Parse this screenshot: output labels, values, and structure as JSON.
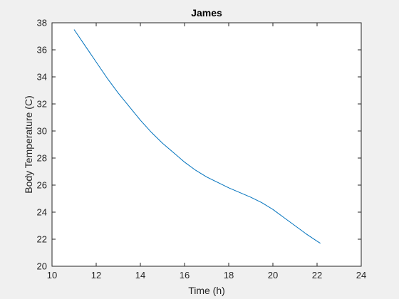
{
  "chart_data": {
    "type": "line",
    "title": "James",
    "xlabel": "Time (h)",
    "ylabel": "Body Temperature (C)",
    "xlim": [
      10,
      24
    ],
    "ylim": [
      20,
      38
    ],
    "xticks": [
      "10",
      "12",
      "14",
      "16",
      "18",
      "20",
      "22",
      "24"
    ],
    "yticks": [
      "20",
      "22",
      "24",
      "26",
      "28",
      "30",
      "32",
      "34",
      "36",
      "38"
    ],
    "grid": false,
    "box": true,
    "series": [
      {
        "color": "#0072bd",
        "x": [
          11.0,
          11.5,
          12.0,
          12.5,
          13.0,
          13.5,
          14.0,
          14.5,
          15.0,
          15.5,
          16.0,
          16.5,
          17.0,
          17.5,
          18.0,
          18.5,
          19.0,
          19.5,
          20.0,
          20.5,
          21.0,
          21.5,
          22.0,
          22.15
        ],
        "y": [
          37.5,
          36.3,
          35.1,
          33.9,
          32.8,
          31.8,
          30.8,
          29.9,
          29.1,
          28.4,
          27.7,
          27.1,
          26.6,
          26.2,
          25.8,
          25.45,
          25.1,
          24.7,
          24.2,
          23.6,
          23.0,
          22.4,
          21.85,
          21.7
        ]
      }
    ]
  }
}
